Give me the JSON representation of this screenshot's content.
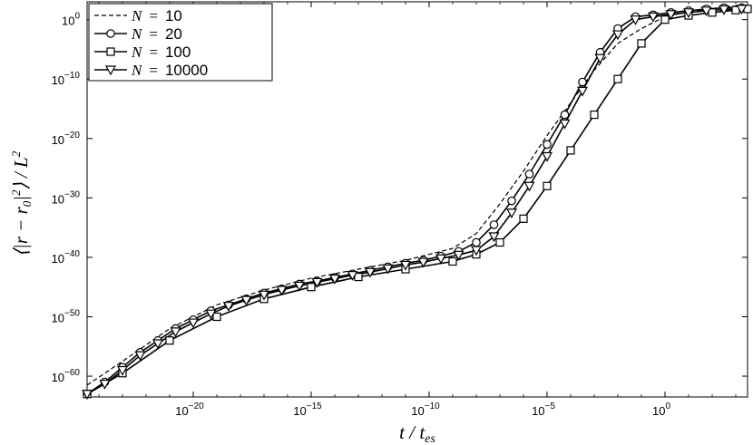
{
  "chart_data": {
    "type": "line",
    "title": "",
    "xlabel": "t / t_es",
    "ylabel": "⟨|r − r₀|²⟩ / L²",
    "x_scale": "log",
    "y_scale": "log",
    "xlim_log10": [
      -24.5,
      3.5
    ],
    "ylim_log10": [
      -63.5,
      3.0
    ],
    "x_tick_exponents": [
      -20,
      -15,
      -10,
      -5,
      0
    ],
    "y_tick_exponents": [
      -60,
      -50,
      -40,
      -30,
      -20,
      -10,
      0
    ],
    "x_tick_labels": [
      "10^-20",
      "10^-15",
      "10^-10",
      "10^-5",
      "10^0"
    ],
    "y_tick_labels": [
      "10^-60",
      "10^-50",
      "10^-40",
      "10^-30",
      "10^-20",
      "10^-10",
      "10^0"
    ],
    "legend_position": "top-left",
    "series": [
      {
        "name": "N = 10",
        "label_var": "N",
        "label_eq": "=",
        "label_value": "10",
        "style": "dashed",
        "marker": "none",
        "color": "#000000",
        "x_log10": [
          -24.5,
          -23,
          -21,
          -19,
          -17,
          -15,
          -13,
          -11,
          -9,
          -8,
          -7,
          -6,
          -5,
          -4,
          -3,
          -2,
          -1,
          0,
          1,
          2,
          3,
          3.5
        ],
        "y_log10": [
          -61.5,
          -57.5,
          -52.0,
          -48.0,
          -45.5,
          -43.5,
          -42.0,
          -40.5,
          -38.5,
          -36.0,
          -31.0,
          -25.5,
          -19.5,
          -14.0,
          -8.5,
          -4.0,
          -1.5,
          0.5,
          1.3,
          1.8,
          2.3,
          2.5
        ]
      },
      {
        "name": "N = 20",
        "label_var": "N",
        "label_eq": "=",
        "label_value": "20",
        "style": "solid",
        "marker": "circle",
        "color": "#000000",
        "x_log10": [
          -24.5,
          -23.75,
          -23.0,
          -22.25,
          -21.5,
          -20.75,
          -20.0,
          -19.25,
          -18.5,
          -17.75,
          -17.0,
          -16.25,
          -15.5,
          -14.75,
          -14.0,
          -13.25,
          -12.5,
          -11.75,
          -11.0,
          -10.25,
          -9.5,
          -8.75,
          -8.0,
          -7.25,
          -6.5,
          -5.75,
          -5.0,
          -4.25,
          -3.5,
          -2.75,
          -2.0,
          -1.25,
          -0.5,
          0.25,
          1.0,
          1.75,
          2.5,
          3.25
        ],
        "y_log10": [
          -63.0,
          -61.0,
          -58.5,
          -56.0,
          -54.0,
          -52.0,
          -50.5,
          -49.0,
          -48.0,
          -47.0,
          -46.0,
          -45.3,
          -44.5,
          -44.0,
          -43.4,
          -42.8,
          -42.2,
          -41.6,
          -41.0,
          -40.5,
          -39.8,
          -39.0,
          -37.5,
          -34.5,
          -30.5,
          -26.0,
          -21.0,
          -16.0,
          -10.5,
          -5.5,
          -1.5,
          0.5,
          0.8,
          1.2,
          1.5,
          1.8,
          2.0,
          2.0
        ]
      },
      {
        "name": "N = 100",
        "label_var": "N",
        "label_eq": "=",
        "label_value": "100",
        "style": "solid",
        "marker": "square",
        "color": "#000000",
        "x_log10": [
          -24.5,
          -23,
          -21,
          -19,
          -17,
          -15,
          -13,
          -11,
          -9,
          -8,
          -7,
          -6,
          -5,
          -4,
          -3,
          -2,
          -1,
          0,
          1,
          2,
          3,
          3.5
        ],
        "y_log10": [
          -63.0,
          -59.5,
          -54.0,
          -50.0,
          -47.0,
          -45.0,
          -43.3,
          -42.0,
          -40.7,
          -39.5,
          -37.5,
          -33.5,
          -28.0,
          -22.0,
          -16.0,
          -10.0,
          -4.0,
          0.0,
          0.7,
          1.2,
          1.6,
          1.8
        ]
      },
      {
        "name": "N = 10000",
        "label_var": "N",
        "label_eq": "=",
        "label_value": "10000",
        "style": "solid",
        "marker": "triangle-down",
        "color": "#000000",
        "x_log10": [
          -24.5,
          -23.75,
          -23.0,
          -22.25,
          -21.5,
          -20.75,
          -20.0,
          -19.25,
          -18.5,
          -17.75,
          -17.0,
          -16.25,
          -15.5,
          -14.75,
          -14.0,
          -13.25,
          -12.5,
          -11.75,
          -11.0,
          -10.25,
          -9.5,
          -8.75,
          -8.0,
          -7.25,
          -6.5,
          -5.75,
          -5.0,
          -4.25,
          -3.5,
          -2.75,
          -2.0,
          -1.25,
          -0.5,
          0.25,
          1.0,
          1.75,
          2.5,
          3.25
        ],
        "y_log10": [
          -63.0,
          -61.3,
          -59.0,
          -56.5,
          -54.5,
          -52.5,
          -51.0,
          -49.5,
          -48.2,
          -47.2,
          -46.3,
          -45.5,
          -44.8,
          -44.2,
          -43.6,
          -43.0,
          -42.5,
          -41.9,
          -41.3,
          -40.8,
          -40.2,
          -39.6,
          -38.8,
          -36.5,
          -32.5,
          -28.0,
          -23.0,
          -17.5,
          -12.0,
          -6.5,
          -2.5,
          0.0,
          0.5,
          0.9,
          1.2,
          1.5,
          1.7,
          1.8
        ]
      }
    ]
  }
}
